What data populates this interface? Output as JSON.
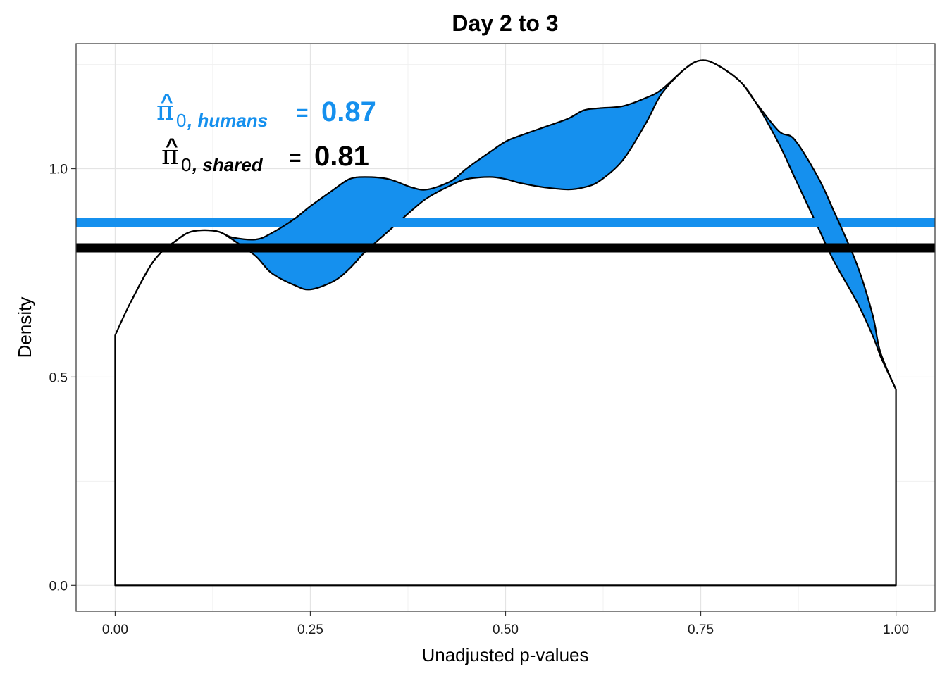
{
  "chart_data": {
    "type": "area",
    "title": "Day 2 to 3",
    "xlabel": "Unadjusted p-values",
    "ylabel": "Density",
    "xlim": [
      -0.05,
      1.05
    ],
    "ylim": [
      -0.062,
      1.3
    ],
    "grid": true,
    "x_ticks": [
      0.0,
      0.25,
      0.5,
      0.75,
      1.0
    ],
    "x_tick_labels": [
      "0.00",
      "0.25",
      "0.50",
      "0.75",
      "1.00"
    ],
    "y_ticks": [
      0.0,
      0.5,
      1.0
    ],
    "y_tick_labels": [
      "0.0",
      "0.5",
      "1.0"
    ],
    "fill_between_color": "#1590ee",
    "series": [
      {
        "kind": "density-a",
        "x": [
          0.0,
          0.02,
          0.05,
          0.08,
          0.1,
          0.13,
          0.15,
          0.18,
          0.2,
          0.23,
          0.25,
          0.28,
          0.3,
          0.32,
          0.35,
          0.38,
          0.4,
          0.43,
          0.45,
          0.48,
          0.5,
          0.52,
          0.55,
          0.58,
          0.6,
          0.62,
          0.65,
          0.68,
          0.7,
          0.73,
          0.75,
          0.77,
          0.8,
          0.82,
          0.85,
          0.87,
          0.9,
          0.92,
          0.95,
          0.97,
          0.98
        ],
        "y": [
          0.6,
          0.68,
          0.78,
          0.83,
          0.85,
          0.85,
          0.83,
          0.79,
          0.75,
          0.72,
          0.71,
          0.73,
          0.76,
          0.8,
          0.85,
          0.9,
          0.93,
          0.96,
          0.975,
          0.98,
          0.975,
          0.965,
          0.955,
          0.95,
          0.955,
          0.97,
          1.02,
          1.11,
          1.18,
          1.24,
          1.26,
          1.25,
          1.21,
          1.16,
          1.06,
          0.98,
          0.86,
          0.78,
          0.68,
          0.6,
          0.55
        ]
      },
      {
        "kind": "density-b",
        "x": [
          0.02,
          0.05,
          0.08,
          0.1,
          0.13,
          0.15,
          0.18,
          0.2,
          0.23,
          0.25,
          0.28,
          0.3,
          0.32,
          0.35,
          0.38,
          0.4,
          0.43,
          0.45,
          0.48,
          0.5,
          0.52,
          0.55,
          0.58,
          0.6,
          0.62,
          0.65,
          0.68,
          0.7,
          0.73,
          0.75,
          0.77,
          0.8,
          0.82,
          0.85,
          0.87,
          0.9,
          0.92,
          0.95,
          0.97,
          0.98,
          1.0
        ],
        "y": [
          0.68,
          0.78,
          0.83,
          0.85,
          0.85,
          0.835,
          0.83,
          0.845,
          0.88,
          0.91,
          0.95,
          0.975,
          0.98,
          0.975,
          0.955,
          0.95,
          0.97,
          1.0,
          1.04,
          1.065,
          1.08,
          1.1,
          1.12,
          1.14,
          1.145,
          1.15,
          1.17,
          1.19,
          1.24,
          1.26,
          1.25,
          1.21,
          1.16,
          1.09,
          1.07,
          0.98,
          0.9,
          0.77,
          0.65,
          0.56,
          0.47
        ]
      }
    ],
    "hlines": [
      {
        "label": "humans",
        "y": 0.87,
        "color": "#1590ee"
      },
      {
        "label": "shared",
        "y": 0.81,
        "color": "#000000"
      }
    ],
    "annotations": [
      {
        "symbol": "π",
        "hat": "^",
        "subscript_num": "0",
        "subscript_text": ", humans",
        "equals": "=",
        "value": "0.87",
        "color": "#1590ee"
      },
      {
        "symbol": "π",
        "hat": "^",
        "subscript_num": "0",
        "subscript_text": ", shared",
        "equals": "=",
        "value": "0.81",
        "color": "#000000"
      }
    ]
  }
}
